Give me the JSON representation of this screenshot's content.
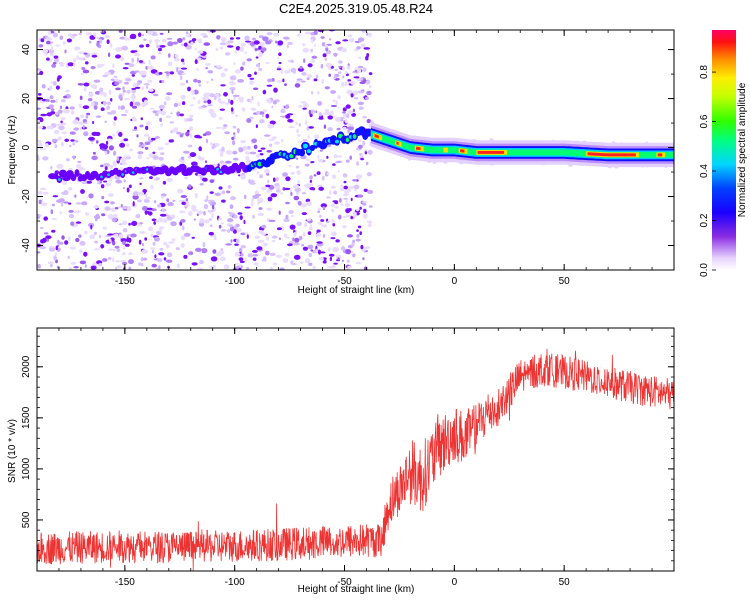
{
  "title": "C2E4.2025.319.05.48.R24",
  "colors": {
    "snr_line": "#ee3333",
    "dots": "#8a2be2",
    "track_core": "#ff2a2a",
    "track_mid": "#00ff40",
    "track_outer": "#1010ff"
  },
  "chart_data": [
    {
      "type": "heatmap",
      "name_shown": "",
      "xlabel": "Height of straight line (km)",
      "ylabel": "Frequency (Hz)",
      "xlim": [
        -190,
        100
      ],
      "ylim": [
        -50,
        48
      ],
      "x_ticks": [
        -150,
        -100,
        -50,
        0,
        50
      ],
      "y_ticks": [
        -40,
        -20,
        0,
        20,
        40
      ],
      "x_tick_labels": [
        "-150",
        "-100",
        "-50",
        "0",
        "50"
      ],
      "y_tick_labels": [
        "-40",
        "-20",
        "0",
        "20",
        "40"
      ],
      "colorbar": {
        "label": "Normalized spectral amplitude",
        "range": [
          0.0,
          0.97
        ],
        "ticks": [
          "0.0",
          "0.2",
          "0.4",
          "0.6",
          "0.8"
        ],
        "tick_values": [
          0.0,
          0.2,
          0.4,
          0.6,
          0.8
        ],
        "colormap": "rainbow (white-violet-blue-cyan-green-yellow-orange-red-magenta)"
      },
      "noise_region_x": [
        -190,
        -38
      ],
      "ridge": [
        {
          "x": -183,
          "y": -12
        },
        {
          "x": -160,
          "y": -11
        },
        {
          "x": -140,
          "y": -10
        },
        {
          "x": -120,
          "y": -9
        },
        {
          "x": -100,
          "y": -9
        },
        {
          "x": -90,
          "y": -7
        },
        {
          "x": -80,
          "y": -4
        },
        {
          "x": -70,
          "y": -1
        },
        {
          "x": -60,
          "y": 1
        },
        {
          "x": -50,
          "y": 4
        },
        {
          "x": -40,
          "y": 6
        },
        {
          "x": -30,
          "y": 3
        },
        {
          "x": -20,
          "y": 0
        },
        {
          "x": -10,
          "y": -1
        },
        {
          "x": 0,
          "y": -1
        },
        {
          "x": 10,
          "y": -2
        },
        {
          "x": 30,
          "y": -2
        },
        {
          "x": 50,
          "y": -2
        },
        {
          "x": 70,
          "y": -3
        },
        {
          "x": 90,
          "y": -3
        },
        {
          "x": 100,
          "y": -3
        }
      ]
    },
    {
      "type": "line",
      "xlabel": "Height of straight line (km)",
      "ylabel": "SNR (10 * v/v)",
      "xlim": [
        -190,
        100
      ],
      "ylim": [
        0,
        2380
      ],
      "x_ticks": [
        -150,
        -100,
        -50,
        0,
        50
      ],
      "y_ticks": [
        500,
        1000,
        1500,
        2000
      ],
      "x_tick_labels": [
        "-150",
        "-100",
        "-50",
        "0",
        "50"
      ],
      "y_tick_labels": [
        "500",
        "1000",
        "1500",
        "2000"
      ],
      "series": [
        {
          "x": [
            -190,
            -170,
            -150,
            -130,
            -110,
            -90,
            -70,
            -50,
            -40,
            -33,
            -30,
            -25,
            -20,
            -15,
            -10,
            -5,
            0,
            5,
            10,
            15,
            20,
            25,
            30,
            40,
            50,
            60,
            70,
            80,
            90,
            100
          ],
          "y": [
            220,
            230,
            240,
            235,
            240,
            250,
            270,
            290,
            300,
            300,
            650,
            800,
            980,
            900,
            1100,
            1250,
            1350,
            1300,
            1400,
            1550,
            1600,
            1750,
            1900,
            1980,
            1950,
            1900,
            1850,
            1800,
            1760,
            1720
          ],
          "spread": [
            320,
            320,
            320,
            320,
            320,
            320,
            330,
            340,
            340,
            340,
            500,
            500,
            650,
            700,
            650,
            600,
            550,
            550,
            500,
            450,
            400,
            380,
            360,
            340,
            330,
            320,
            320,
            320,
            320,
            320
          ]
        }
      ]
    }
  ]
}
